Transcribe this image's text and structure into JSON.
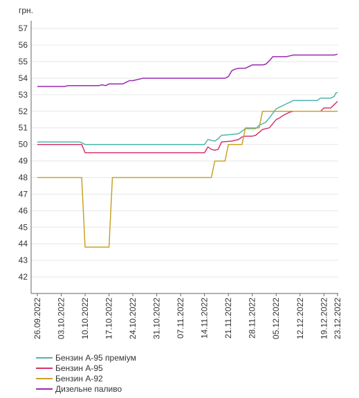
{
  "chart_data": {
    "type": "line",
    "unit_label": "грн.",
    "y_ticks": [
      42,
      43,
      44,
      45,
      46,
      47,
      48,
      49,
      50,
      51,
      52,
      53,
      54,
      55,
      56,
      57
    ],
    "ylim": [
      41,
      57.3
    ],
    "x_ticks": [
      "26.09.2022",
      "03.10.2022",
      "10.10.2022",
      "17.10.2022",
      "24.10.2022",
      "31.10.2022",
      "07.11.2022",
      "14.11.2022",
      "21.11.2022",
      "28.11.2022",
      "05.12.2022",
      "12.12.2022",
      "19.12.2022",
      "23.12.2022"
    ],
    "x_tick_days": [
      0,
      7,
      14,
      21,
      28,
      35,
      42,
      49,
      56,
      63,
      70,
      77,
      84,
      88
    ],
    "grid": "horizontal",
    "legend_position": "bottom",
    "series": [
      {
        "name": "Бензин А-95 преміум",
        "color": "#4db6ac",
        "points": [
          [
            0,
            50.15
          ],
          [
            12.5,
            50.15
          ],
          [
            14,
            50
          ],
          [
            49,
            50
          ],
          [
            50,
            50.3
          ],
          [
            51,
            50.25
          ],
          [
            52,
            50.2
          ],
          [
            53,
            50.35
          ],
          [
            54,
            50.55
          ],
          [
            57,
            50.6
          ],
          [
            59,
            50.65
          ],
          [
            60,
            50.8
          ],
          [
            61,
            50.95
          ],
          [
            64,
            50.95
          ],
          [
            65,
            51.15
          ],
          [
            67,
            51.35
          ],
          [
            68,
            51.6
          ],
          [
            70,
            52.15
          ],
          [
            72,
            52.35
          ],
          [
            73,
            52.45
          ],
          [
            74,
            52.55
          ],
          [
            75,
            52.65
          ],
          [
            82,
            52.65
          ],
          [
            83,
            52.8
          ],
          [
            86,
            52.8
          ],
          [
            87,
            52.9
          ],
          [
            87.5,
            53.1
          ],
          [
            88,
            53.15
          ]
        ]
      },
      {
        "name": "Бензин А-95",
        "color": "#d6336c",
        "points": [
          [
            0,
            50.0
          ],
          [
            13,
            50.0
          ],
          [
            14,
            49.5
          ],
          [
            49,
            49.5
          ],
          [
            50,
            49.85
          ],
          [
            51,
            49.7
          ],
          [
            52,
            49.65
          ],
          [
            53,
            49.7
          ],
          [
            54,
            50.15
          ],
          [
            57,
            50.2
          ],
          [
            59,
            50.3
          ],
          [
            60,
            50.45
          ],
          [
            61,
            50.5
          ],
          [
            63,
            50.5
          ],
          [
            64,
            50.55
          ],
          [
            66,
            50.9
          ],
          [
            68,
            51.0
          ],
          [
            70,
            51.5
          ],
          [
            71,
            51.6
          ],
          [
            72,
            51.75
          ],
          [
            73,
            51.85
          ],
          [
            74,
            51.95
          ],
          [
            75,
            52.0
          ],
          [
            83,
            52.0
          ],
          [
            84,
            52.2
          ],
          [
            86,
            52.2
          ],
          [
            87,
            52.4
          ],
          [
            88,
            52.6
          ]
        ]
      },
      {
        "name": "Бензин А-92",
        "color": "#c9a227",
        "points": [
          [
            0,
            48
          ],
          [
            13,
            48
          ],
          [
            14,
            43.8
          ],
          [
            21,
            43.8
          ],
          [
            22,
            48
          ],
          [
            51,
            48
          ],
          [
            52,
            49
          ],
          [
            55,
            49
          ],
          [
            56,
            50
          ],
          [
            60,
            50
          ],
          [
            61,
            51
          ],
          [
            65,
            51
          ],
          [
            66,
            52
          ],
          [
            88,
            52
          ]
        ]
      },
      {
        "name": "Дизельне паливо",
        "color": "#9c27b0",
        "points": [
          [
            0,
            53.5
          ],
          [
            8,
            53.5
          ],
          [
            9,
            53.55
          ],
          [
            18,
            53.55
          ],
          [
            19,
            53.6
          ],
          [
            20,
            53.55
          ],
          [
            21,
            53.65
          ],
          [
            25,
            53.65
          ],
          [
            26,
            53.75
          ],
          [
            27,
            53.85
          ],
          [
            28,
            53.85
          ],
          [
            30,
            53.95
          ],
          [
            31,
            54.0
          ],
          [
            55,
            54.0
          ],
          [
            56,
            54.1
          ],
          [
            57,
            54.45
          ],
          [
            58,
            54.55
          ],
          [
            59,
            54.6
          ],
          [
            61,
            54.6
          ],
          [
            62,
            54.7
          ],
          [
            63,
            54.8
          ],
          [
            66,
            54.8
          ],
          [
            67,
            54.85
          ],
          [
            68,
            55.05
          ],
          [
            69,
            55.3
          ],
          [
            73,
            55.3
          ],
          [
            74,
            55.35
          ],
          [
            75,
            55.4
          ],
          [
            87,
            55.4
          ],
          [
            88,
            55.45
          ]
        ]
      }
    ]
  }
}
